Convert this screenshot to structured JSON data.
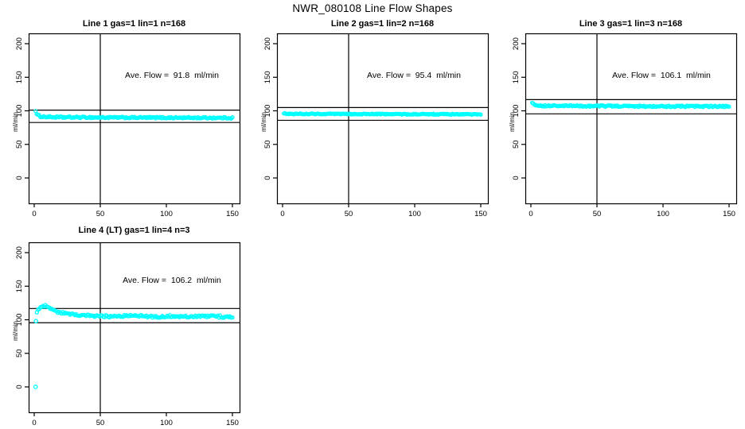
{
  "chart_data": {
    "type": "scatter",
    "title": "NWR_080108  Line Flow Shapes",
    "ylabel": "ml/min",
    "background": "#ffffff",
    "point_color": "#00FFFF",
    "line_color": "#000000",
    "x_ticks": [
      0,
      50,
      100,
      150
    ],
    "y_ticks": [
      0,
      50,
      100,
      150,
      200
    ],
    "xlim": [
      -4,
      156
    ],
    "ylim": [
      -38,
      215
    ],
    "grid": false,
    "vline_x": 50,
    "panels": [
      {
        "title": "Line 1 gas=1 lin=1 n=168",
        "annotation": "Ave. Flow =  91.8  ml/min",
        "ave_flow": 91.8,
        "n": 168,
        "hlines": [
          101.0,
          82.6
        ],
        "x_start": 1,
        "x_end": 150,
        "n_points": 168,
        "series_keypoints": [
          [
            1,
            100.5
          ],
          [
            2,
            94
          ],
          [
            5,
            91.5
          ],
          [
            15,
            90.5
          ],
          [
            60,
            90
          ],
          [
            150,
            89.5
          ]
        ],
        "noise": 1.1,
        "outliers": []
      },
      {
        "title": "Line 2 gas=1 lin=2 n=168",
        "annotation": "Ave. Flow =  95.4  ml/min",
        "ave_flow": 95.4,
        "n": 168,
        "hlines": [
          104.9,
          85.9
        ],
        "x_start": 1,
        "x_end": 150,
        "n_points": 168,
        "series_keypoints": [
          [
            1,
            96.5
          ],
          [
            4,
            95.5
          ],
          [
            60,
            95.2
          ],
          [
            150,
            94.8
          ]
        ],
        "noise": 0.7,
        "outliers": []
      },
      {
        "title": "Line 3 gas=1 lin=3 n=168",
        "annotation": "Ave. Flow =  106.1  ml/min",
        "ave_flow": 106.1,
        "n": 168,
        "hlines": [
          116.7,
          95.5
        ],
        "x_start": 1,
        "x_end": 150,
        "n_points": 168,
        "series_keypoints": [
          [
            1,
            112.5
          ],
          [
            2,
            110
          ],
          [
            4,
            108.5
          ],
          [
            10,
            107.5
          ],
          [
            60,
            107
          ],
          [
            150,
            106.5
          ]
        ],
        "noise": 1.1,
        "outliers": []
      },
      {
        "title": "Line 4 (LT) gas=1 lin=4 n=3",
        "annotation": "Ave. Flow =  106.2  ml/min",
        "ave_flow": 106.2,
        "n": 3,
        "hlines": [
          116.8,
          95.6
        ],
        "x_start": 2,
        "x_end": 150,
        "n_points": 160,
        "series_keypoints": [
          [
            2,
            111
          ],
          [
            5,
            119
          ],
          [
            8,
            121
          ],
          [
            12,
            117
          ],
          [
            17,
            112
          ],
          [
            24,
            109
          ],
          [
            32,
            107
          ],
          [
            45,
            105.5
          ],
          [
            60,
            105
          ],
          [
            75,
            106.5
          ],
          [
            90,
            104.5
          ],
          [
            105,
            105.5
          ],
          [
            120,
            104.8
          ],
          [
            135,
            105.2
          ],
          [
            150,
            104
          ]
        ],
        "noise": 1.6,
        "outliers": [
          [
            1,
            0
          ],
          [
            1.3,
            98
          ]
        ]
      }
    ]
  }
}
